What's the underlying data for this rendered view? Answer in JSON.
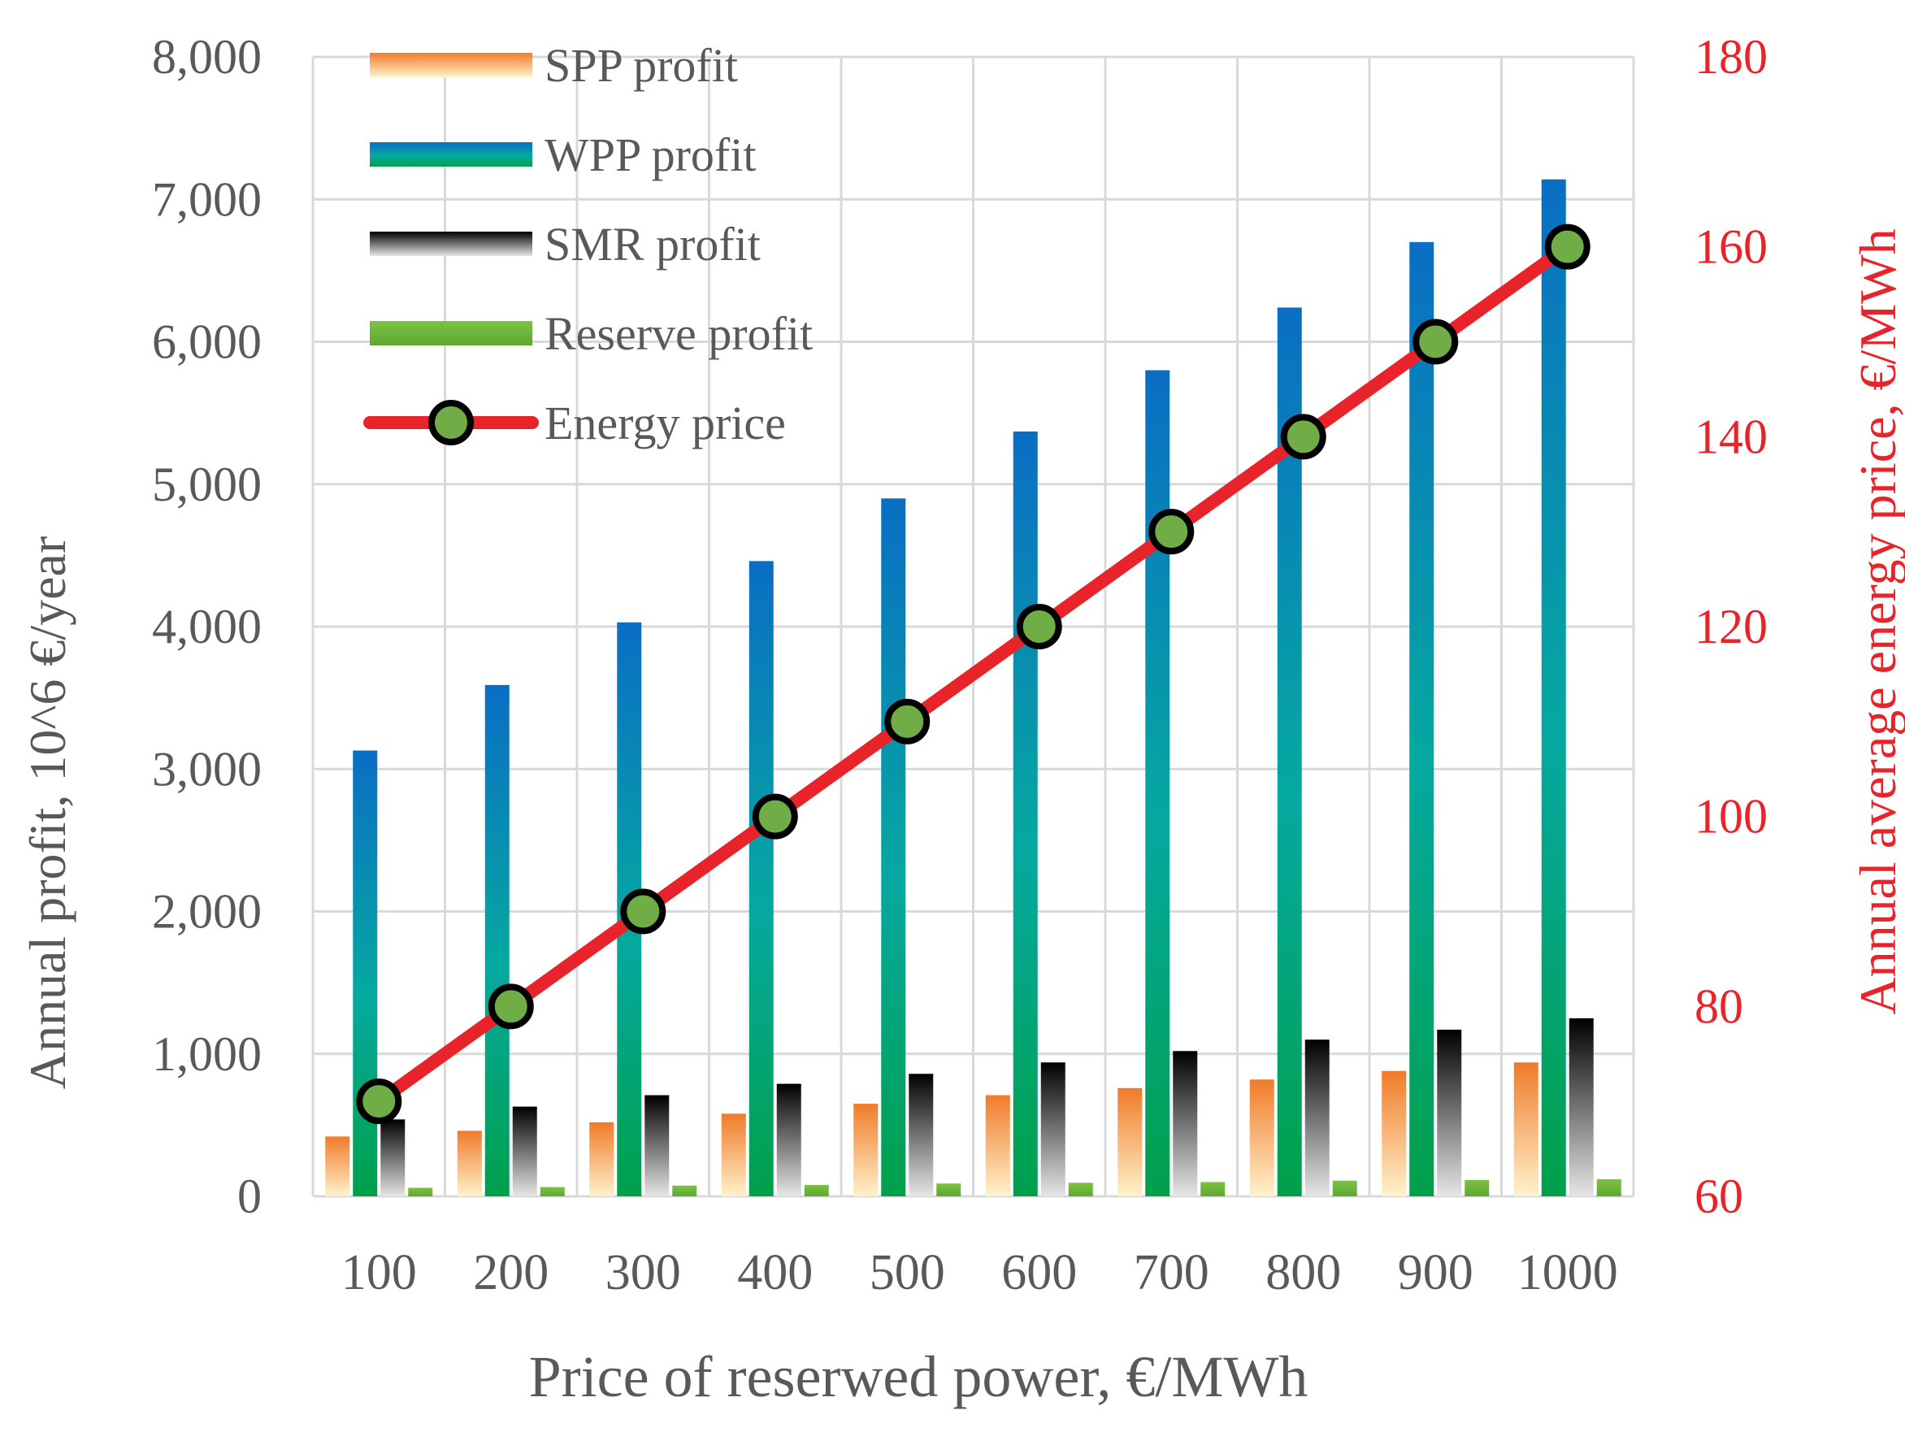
{
  "chart_data": {
    "type": "bar",
    "categories": [
      "100",
      "200",
      "300",
      "400",
      "500",
      "600",
      "700",
      "800",
      "900",
      "1000"
    ],
    "xlabel": "Price of reserwed power, €/MWh",
    "ylabel": "Annual profit, 10^6 €/year",
    "y2label": "Annual average energy price, €/MWh",
    "ylim": [
      0,
      8000
    ],
    "y2lim": [
      60,
      180
    ],
    "yticks": [
      "0",
      "1,000",
      "2,000",
      "3,000",
      "4,000",
      "5,000",
      "6,000",
      "7,000",
      "8,000"
    ],
    "y2ticks": [
      "60",
      "80",
      "100",
      "120",
      "140",
      "160",
      "180"
    ],
    "grid": true,
    "legend_position": "top-left",
    "series": [
      {
        "name": "SPP profit",
        "kind": "bar",
        "axis": "left",
        "color": "#f07b2a",
        "values": [
          420,
          460,
          520,
          580,
          650,
          710,
          760,
          820,
          880,
          940
        ]
      },
      {
        "name": "WPP profit",
        "kind": "bar",
        "axis": "left",
        "color": "#0070c0",
        "values": [
          3130,
          3590,
          4030,
          4460,
          4900,
          5370,
          5800,
          6240,
          6700,
          7140
        ]
      },
      {
        "name": "SMR profit",
        "kind": "bar",
        "axis": "left",
        "color": "#000000",
        "values": [
          540,
          630,
          710,
          790,
          860,
          940,
          1020,
          1100,
          1170,
          1250
        ]
      },
      {
        "name": "Reserve profit",
        "kind": "bar",
        "axis": "left",
        "color": "#70ad47",
        "values": [
          60,
          65,
          75,
          80,
          90,
          95,
          100,
          110,
          115,
          120
        ]
      },
      {
        "name": "Energy price",
        "kind": "line",
        "axis": "right",
        "color": "#e8232a",
        "marker_color": "#70ad47",
        "values": [
          70,
          80,
          90,
          100,
          110,
          120,
          130,
          140,
          150,
          160
        ]
      }
    ]
  }
}
